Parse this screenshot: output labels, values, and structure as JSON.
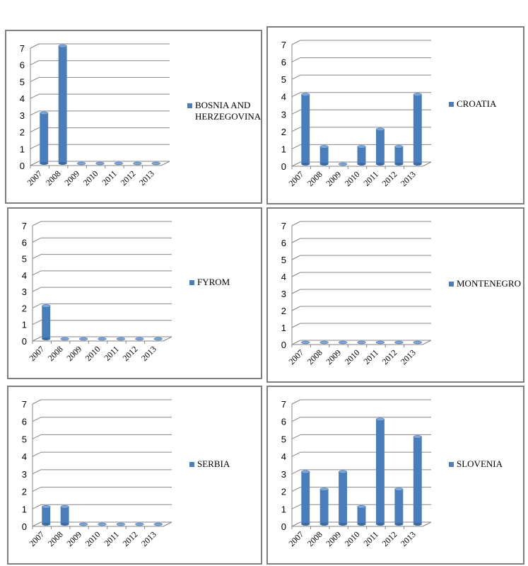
{
  "chart_data": [
    {
      "type": "bar",
      "categories": [
        "2007",
        "2008",
        "2009",
        "2010",
        "2011",
        "2012",
        "2013"
      ],
      "series": [
        {
          "name": "BOSNIA AND HERZEGOVINA",
          "values": [
            3,
            7,
            0,
            0,
            0,
            0,
            0
          ]
        }
      ],
      "ylim": [
        0,
        7
      ],
      "yticks": [
        0,
        1,
        2,
        3,
        4,
        5,
        6,
        7
      ],
      "grid": true,
      "legend": "right",
      "color": "#4a7ebb"
    },
    {
      "type": "bar",
      "categories": [
        "2007",
        "2008",
        "2009",
        "2010",
        "2011",
        "2012",
        "2013"
      ],
      "series": [
        {
          "name": "CROATIA",
          "values": [
            4,
            1,
            0,
            1,
            2,
            1,
            4
          ]
        }
      ],
      "ylim": [
        0,
        7
      ],
      "yticks": [
        0,
        1,
        2,
        3,
        4,
        5,
        6,
        7
      ],
      "grid": true,
      "legend": "right",
      "color": "#4a7ebb"
    },
    {
      "type": "bar",
      "categories": [
        "2007",
        "2008",
        "2009",
        "2010",
        "2011",
        "2012",
        "2013"
      ],
      "series": [
        {
          "name": "FYROM",
          "values": [
            2,
            0,
            0,
            0,
            0,
            0,
            0
          ]
        }
      ],
      "ylim": [
        0,
        7
      ],
      "yticks": [
        0,
        1,
        2,
        3,
        4,
        5,
        6,
        7
      ],
      "grid": true,
      "legend": "right",
      "color": "#4a7ebb"
    },
    {
      "type": "bar",
      "categories": [
        "2007",
        "2008",
        "2009",
        "2010",
        "2011",
        "2012",
        "2013"
      ],
      "series": [
        {
          "name": "MONTENEGRO",
          "values": [
            0,
            0,
            0,
            0,
            0,
            0,
            0
          ]
        }
      ],
      "ylim": [
        0,
        7
      ],
      "yticks": [
        0,
        1,
        2,
        3,
        4,
        5,
        6,
        7
      ],
      "grid": true,
      "legend": "right",
      "color": "#4a7ebb"
    },
    {
      "type": "bar",
      "categories": [
        "2007",
        "2008",
        "2009",
        "2010",
        "2011",
        "2012",
        "2013"
      ],
      "series": [
        {
          "name": "SERBIA",
          "values": [
            1,
            1,
            0,
            0,
            0,
            0,
            0
          ]
        }
      ],
      "ylim": [
        0,
        7
      ],
      "yticks": [
        0,
        1,
        2,
        3,
        4,
        5,
        6,
        7
      ],
      "grid": true,
      "legend": "right",
      "color": "#4a7ebb"
    },
    {
      "type": "bar",
      "categories": [
        "2007",
        "2008",
        "2009",
        "2010",
        "2011",
        "2012",
        "2013"
      ],
      "series": [
        {
          "name": "SLOVENIA",
          "values": [
            3,
            2,
            3,
            1,
            6,
            2,
            5
          ]
        }
      ],
      "ylim": [
        0,
        7
      ],
      "yticks": [
        0,
        1,
        2,
        3,
        4,
        5,
        6,
        7
      ],
      "grid": true,
      "legend": "right",
      "color": "#4a7ebb"
    }
  ]
}
